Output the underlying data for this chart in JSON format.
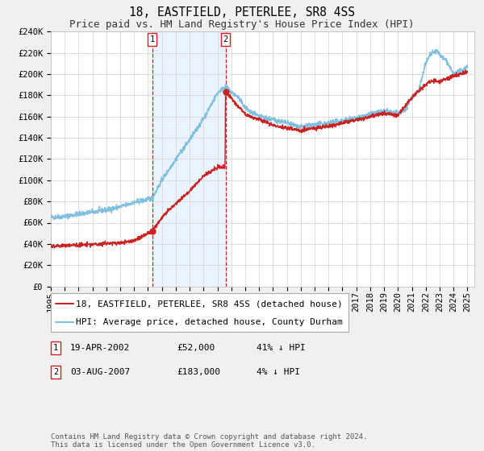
{
  "title": "18, EASTFIELD, PETERLEE, SR8 4SS",
  "subtitle": "Price paid vs. HM Land Registry's House Price Index (HPI)",
  "ylim": [
    0,
    240000
  ],
  "yticks": [
    0,
    20000,
    40000,
    60000,
    80000,
    100000,
    120000,
    140000,
    160000,
    180000,
    200000,
    220000,
    240000
  ],
  "ytick_labels": [
    "£0",
    "£20K",
    "£40K",
    "£60K",
    "£80K",
    "£100K",
    "£120K",
    "£140K",
    "£160K",
    "£180K",
    "£200K",
    "£220K",
    "£240K"
  ],
  "xlim_start": 1995.0,
  "xlim_end": 2025.5,
  "xticks": [
    1995,
    1996,
    1997,
    1998,
    1999,
    2000,
    2001,
    2002,
    2003,
    2004,
    2005,
    2006,
    2007,
    2008,
    2009,
    2010,
    2011,
    2012,
    2013,
    2014,
    2015,
    2016,
    2017,
    2018,
    2019,
    2020,
    2021,
    2022,
    2023,
    2024,
    2025
  ],
  "bg_color": "#f0f0f0",
  "plot_bg_color": "#ffffff",
  "grid_color": "#d8d8d8",
  "hpi_color": "#7fbfdf",
  "price_color": "#cc2222",
  "marker_color": "#cc2222",
  "vline_color": "#cc2222",
  "shade_color": "#ddeeff",
  "legend_label_price": "18, EASTFIELD, PETERLEE, SR8 4SS (detached house)",
  "legend_label_hpi": "HPI: Average price, detached house, County Durham",
  "sale1_x": 2002.3,
  "sale1_y": 52000,
  "sale1_label": "1",
  "sale1_date": "19-APR-2002",
  "sale1_price": "£52,000",
  "sale1_hpi": "41% ↓ HPI",
  "sale2_x": 2007.58,
  "sale2_y": 183000,
  "sale2_label": "2",
  "sale2_date": "03-AUG-2007",
  "sale2_price": "£183,000",
  "sale2_hpi": "4% ↓ HPI",
  "footer": "Contains HM Land Registry data © Crown copyright and database right 2024.\nThis data is licensed under the Open Government Licence v3.0.",
  "title_fontsize": 10.5,
  "subtitle_fontsize": 9,
  "tick_fontsize": 7.5,
  "legend_fontsize": 8,
  "footer_fontsize": 6.5
}
